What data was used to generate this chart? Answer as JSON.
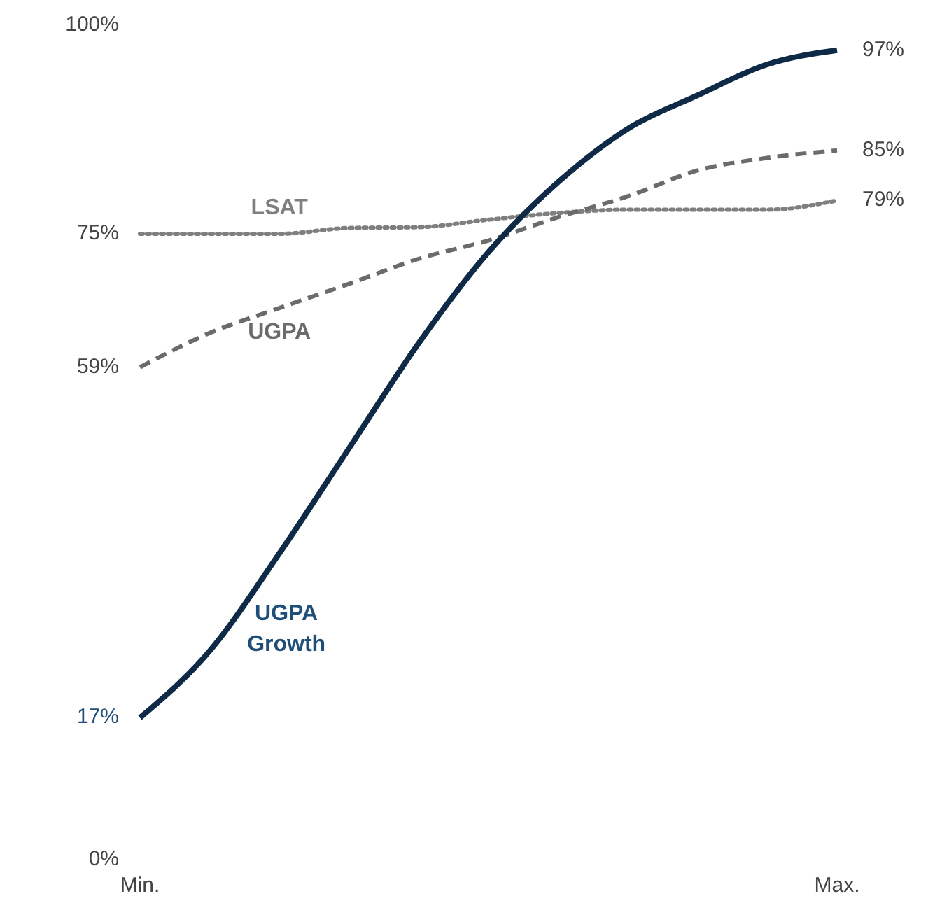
{
  "chart_data": {
    "type": "line",
    "categories": [
      "Min.",
      null,
      null,
      null,
      null,
      null,
      null,
      null,
      null,
      null,
      "Max."
    ],
    "ylim": [
      0,
      100
    ],
    "yticks": [
      {
        "value": 0,
        "label": "0%"
      },
      {
        "value": 17,
        "label": "17%"
      },
      {
        "value": 59,
        "label": "59%"
      },
      {
        "value": 75,
        "label": "75%"
      },
      {
        "value": 100,
        "label": "100%"
      }
    ],
    "grid": false,
    "legend": false,
    "marker": "none",
    "series": [
      {
        "name": "LSAT",
        "color": "#7f7f7f",
        "line_style": "dotted",
        "values": [
          75,
          75,
          75,
          75.7,
          75.8,
          76.7,
          77.5,
          77.9,
          77.9,
          77.9,
          79
        ],
        "value_labels": [
          null,
          null,
          null,
          null,
          null,
          null,
          null,
          null,
          null,
          null,
          "79%"
        ]
      },
      {
        "name": "UGPA",
        "color": "#6b6b6b",
        "line_style": "dashed",
        "values": [
          59,
          63.1,
          66.1,
          69,
          72,
          74.2,
          77,
          79.5,
          82.6,
          84.1,
          85
        ],
        "value_labels": [
          null,
          null,
          null,
          null,
          null,
          null,
          null,
          null,
          null,
          null,
          "85%"
        ]
      },
      {
        "name": "UGPA Growth",
        "color": "#0e2a47",
        "line_style": "solid",
        "values": [
          17,
          25,
          36.7,
          49.3,
          61.9,
          72.8,
          81.2,
          87.6,
          91.6,
          95.3,
          97
        ],
        "value_labels": [
          null,
          null,
          null,
          null,
          null,
          null,
          null,
          null,
          null,
          null,
          "97%"
        ]
      }
    ]
  }
}
